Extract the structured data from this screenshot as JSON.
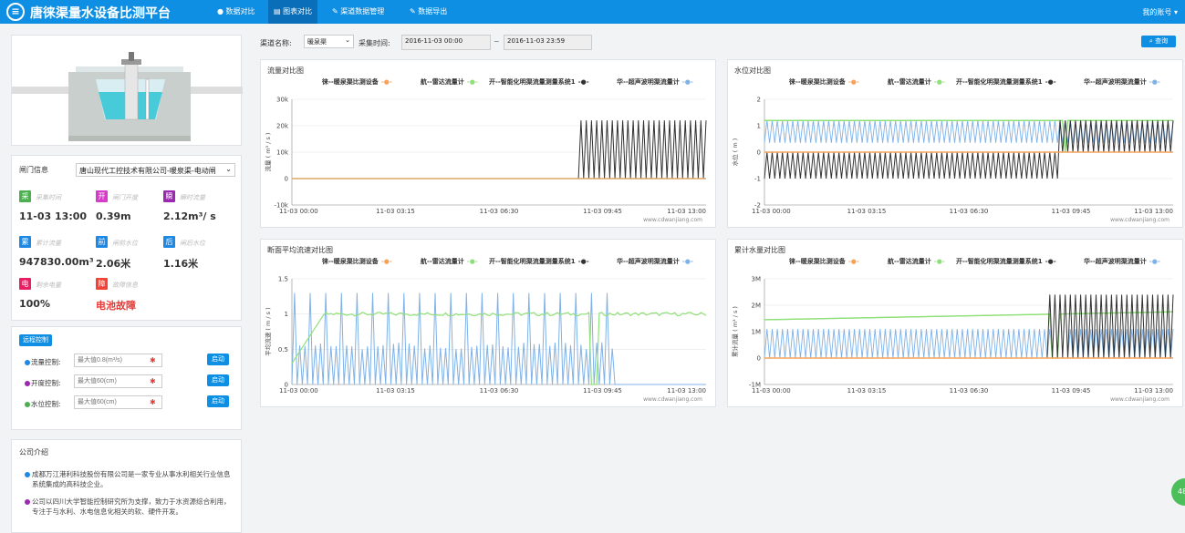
{
  "header": {
    "logo_glyph": "≡",
    "title": "唐徕渠量水设备比测平台",
    "nav": [
      "数据对比",
      "图表对比",
      "渠道数据管理",
      "数据导出"
    ],
    "nav_icons": [
      "●",
      "▤",
      "✎",
      "✎"
    ],
    "active": 1,
    "account": "我的账号 ▾"
  },
  "device": {
    "gate_label": "闸门信息",
    "gate_value": "唐山现代工控技术有限公司-暖泉渠-电动闸",
    "items": [
      {
        "tag": "采",
        "tag_color": "#4caf50",
        "label": "采集时间",
        "value": "11-03 13:00"
      },
      {
        "tag": "开",
        "tag_color": "#d63cc9",
        "label": "闸门开度",
        "value": "0.39m"
      },
      {
        "tag": "瞬",
        "tag_color": "#9c27b0",
        "label": "瞬时流量",
        "value": "2.12m³/ s"
      },
      {
        "tag": "累",
        "tag_color": "#1e88e5",
        "label": "累计流量",
        "value": "947830.00m³"
      },
      {
        "tag": "前",
        "tag_color": "#1e88e5",
        "label": "闸前水位",
        "value": "2.06米"
      },
      {
        "tag": "后",
        "tag_color": "#1e88e5",
        "label": "闸后水位",
        "value": "1.16米"
      },
      {
        "tag": "电",
        "tag_color": "#e91e63",
        "label": "剩余电量",
        "value": "100%"
      },
      {
        "tag": "障",
        "tag_color": "#f44336",
        "label": "故障信息",
        "value": "电池故障"
      }
    ]
  },
  "control": {
    "badge": "远程控制",
    "rows": [
      {
        "label": "流量控制:",
        "placeholder": "最大值0.8(m³/s)",
        "dot": "#1e88e5"
      },
      {
        "label": "开度控制:",
        "placeholder": "最大值60(cm)",
        "dot": "#9c27b0"
      },
      {
        "label": "水位控制:",
        "placeholder": "最大值60(cm)",
        "dot": "#4caf50"
      }
    ],
    "btn": "启动",
    "req": "✱"
  },
  "company": {
    "title": "公司介绍",
    "para1": "成都万江港利科技股份有限公司是一家专业从事水利相关行业信息系统集成的高科技企业。",
    "para2": "公司以四川大学智能控制研究所为支撑，致力于水资源综合利用，专注于与水利、水电信息化相关的软、硬件开发。"
  },
  "filters": {
    "channel_label": "渠道名称:",
    "channel_value": "暖泉渠",
    "time_label": "采集时间:",
    "start": "2016-11-03 00:00",
    "sep": "~",
    "end": "2016-11-03 23:59",
    "search_btn": "查询"
  },
  "legend": [
    "徕--暖泉渠比测设备",
    "航--雷达流量计",
    "开--智能化明渠流量测量系统1",
    "华--超声波明渠流量计"
  ],
  "colors": {
    "orange": "#f5a35c",
    "green": "#90e07a",
    "black": "#333333",
    "blue": "#7fb2e8"
  },
  "watermark": "www.cdwanjiang.com",
  "float_badge": "48",
  "chart_data": [
    {
      "type": "line",
      "title": "流量对比图",
      "ylabel": "流量 ( m³ / s )",
      "ylim": [
        -10000,
        30000
      ],
      "yticks": [
        "-10k",
        "0",
        "10k",
        "20k",
        "30k"
      ],
      "xticks": [
        "11-03 00:00",
        "11-03 03:15",
        "11-03 06:30",
        "11-03 09:45",
        "11-03 13:00"
      ],
      "series": [
        {
          "name": "徕--暖泉渠比测设备",
          "values": "flat 0"
        },
        {
          "name": "航--雷达流量计",
          "values": "flat 0"
        },
        {
          "name": "开--智能化明渠流量测量系统1",
          "values": "0 until 09:00, then oscillating 0–22000"
        },
        {
          "name": "华--超声波明渠流量计",
          "values": "≈0"
        }
      ]
    },
    {
      "type": "line",
      "title": "水位对比图",
      "ylabel": "水位 ( m )",
      "ylim": [
        -2,
        2
      ],
      "yticks": [
        "-2",
        "-1",
        "0",
        "1",
        "2"
      ],
      "xticks": [
        "11-03 00:00",
        "11-03 03:15",
        "11-03 06:30",
        "11-03 09:45",
        "11-03 13:00"
      ],
      "series": [
        {
          "name": "徕--暖泉渠比测设备",
          "values": "flat 0"
        },
        {
          "name": "航--雷达流量计",
          "values": "≈1.2"
        },
        {
          "name": "开--智能化明渠流量测量系统1",
          "values": "oscillating -1–0 until 09:45, then 0–1.2"
        },
        {
          "name": "华--超声波明渠流量计",
          "values": "oscillating 0.3–1.2"
        }
      ]
    },
    {
      "type": "line",
      "title": "断面平均流速对比图",
      "ylabel": "平均流速 ( m / s )",
      "ylim": [
        0,
        1.5
      ],
      "yticks": [
        "0",
        "0.5",
        "1",
        "1.5"
      ],
      "xticks": [
        "11-03 00:00",
        "11-03 03:15",
        "11-03 06:30",
        "11-03 09:45",
        "11-03 13:00"
      ],
      "series": [
        {
          "name": "航--雷达流量计",
          "values": "≈1.0 noisy"
        },
        {
          "name": "华--超声波明渠流量计",
          "values": "oscillating 0–1.3"
        }
      ]
    },
    {
      "type": "line",
      "title": "累计水量对比图",
      "ylabel": "累计流量 ( m³ / s )",
      "ylim": [
        -1000000,
        3000000
      ],
      "yticks": [
        "-1M",
        "0",
        "1M",
        "2M",
        "3M"
      ],
      "xticks": [
        "11-03 00:00",
        "11-03 03:15",
        "11-03 06:30",
        "11-03 09:45",
        "11-03 13:00"
      ],
      "series": [
        {
          "name": "徕--暖泉渠比测设备",
          "values": "flat 0"
        },
        {
          "name": "航--雷达流量计",
          "values": "1.45M rising to 1.75M"
        },
        {
          "name": "开--智能化明渠流量测量系统1",
          "values": "0 until 09:00, then oscillating 0–2.4M"
        },
        {
          "name": "华--超声波明渠流量计",
          "values": "oscillating 0–1.1M"
        }
      ]
    }
  ]
}
